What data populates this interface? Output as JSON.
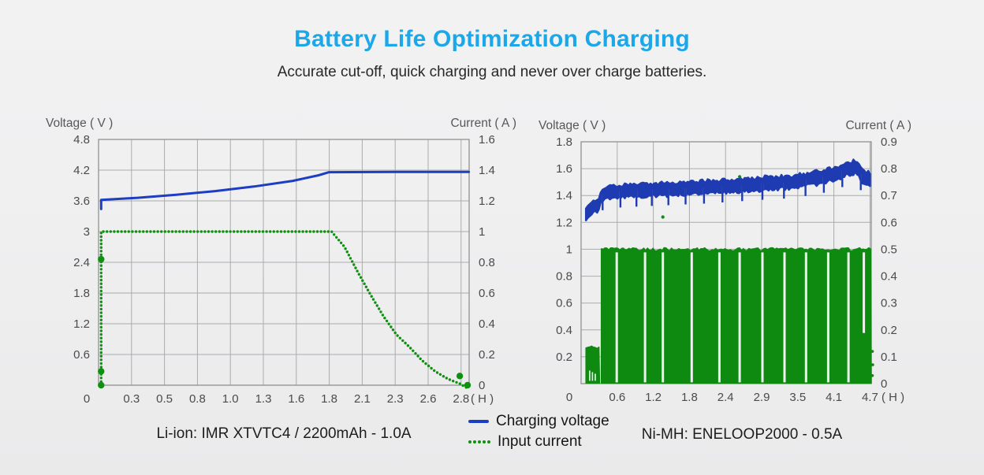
{
  "page": {
    "title": "Battery Life Optimization Charging",
    "subtitle": "Accurate cut-off, quick charging and never over charge batteries.",
    "title_color": "#1ba7e8",
    "background": "#efeff0"
  },
  "legend": {
    "items": [
      {
        "label": "Charging voltage",
        "style": "line",
        "color": "#1d3ec2"
      },
      {
        "label": "Input current",
        "style": "dotted",
        "color": "#0f9110"
      }
    ]
  },
  "chart_data": [
    {
      "id": "liion",
      "type": "line",
      "caption": "Li-ion: IMR XTVTC4 / 2200mAh - 1.0A",
      "left_axis": {
        "label": "Voltage ( V )",
        "min": 0,
        "max": 4.8,
        "ticks": [
          "4.8",
          "4.2",
          "3.6",
          "3",
          "2.4",
          "1.8",
          "1.2",
          "0.6"
        ]
      },
      "right_axis": {
        "label": "Current ( A )",
        "min": 0,
        "max": 1.6,
        "ticks": [
          "1.6",
          "1.4",
          "1.2",
          "1",
          "0.8",
          "0.6",
          "0.4",
          "0.2",
          "0"
        ]
      },
      "x_axis": {
        "unit": "( H )",
        "min": 0,
        "max": 2.86,
        "ticks": [
          "0",
          "0.3",
          "0.5",
          "0.8",
          "1.0",
          "1.3",
          "1.6",
          "1.8",
          "2.1",
          "2.3",
          "2.6",
          "2.8"
        ]
      },
      "grid": true,
      "series": [
        {
          "name": "Charging voltage",
          "axis": "left",
          "style": "line",
          "color": "#1d3ec2",
          "points": [
            [
              0.02,
              3.44
            ],
            [
              0.02,
              3.62
            ],
            [
              0.3,
              3.66
            ],
            [
              0.6,
              3.72
            ],
            [
              0.9,
              3.79
            ],
            [
              1.2,
              3.88
            ],
            [
              1.5,
              3.99
            ],
            [
              1.7,
              4.1
            ],
            [
              1.78,
              4.16
            ],
            [
              2.3,
              4.165
            ],
            [
              2.86,
              4.165
            ]
          ]
        },
        {
          "name": "Input current",
          "axis": "right",
          "style": "dotted",
          "color": "#0f9110",
          "points": [
            [
              0.02,
              0.0
            ],
            [
              0.02,
              1.0
            ],
            [
              1.8,
              1.0
            ],
            [
              1.9,
              0.9
            ],
            [
              2.0,
              0.74
            ],
            [
              2.1,
              0.59
            ],
            [
              2.2,
              0.45
            ],
            [
              2.3,
              0.33
            ],
            [
              2.4,
              0.25
            ],
            [
              2.5,
              0.16
            ],
            [
              2.6,
              0.09
            ],
            [
              2.7,
              0.04
            ],
            [
              2.79,
              0.01
            ],
            [
              2.85,
              -0.02
            ]
          ],
          "big_dots": [
            [
              0.02,
              0.0
            ],
            [
              0.02,
              0.09
            ],
            [
              0.02,
              0.82
            ],
            [
              2.79,
              0.06
            ],
            [
              2.85,
              0.0
            ]
          ]
        }
      ]
    },
    {
      "id": "nimh",
      "type": "area",
      "caption": "Ni-MH: ENELOOP2000 - 0.5A",
      "left_axis": {
        "label": "Voltage ( V )",
        "min": 0,
        "max": 1.8,
        "ticks": [
          "1.8",
          "1.6",
          "1.4",
          "1.2",
          "1",
          "0.8",
          "0.6",
          "0.4",
          "0.2"
        ]
      },
      "right_axis": {
        "label": "Current ( A )",
        "min": 0,
        "max": 0.9,
        "ticks": [
          "0.9",
          "0.8",
          "0.7",
          "0.6",
          "0.5",
          "0.4",
          "0.3",
          "0.2",
          "0.1",
          "0"
        ]
      },
      "x_axis": {
        "unit": "( H )",
        "min": 0,
        "max": 4.75,
        "ticks": [
          "0",
          "0.6",
          "1.2",
          "1.8",
          "2.4",
          "2.9",
          "3.5",
          "4.1",
          "4.7"
        ]
      },
      "grid": true,
      "blue_dips": [
        0.35,
        0.64,
        0.9,
        1.15,
        1.42,
        1.7,
        2.0,
        2.3,
        2.62,
        2.95,
        3.3,
        3.65,
        3.95,
        4.25,
        4.55
      ],
      "green_gaps": [
        0.58,
        1.04,
        1.33,
        1.8,
        2.25,
        2.58,
        2.95,
        3.31,
        3.66,
        4.02,
        4.35,
        {
          "x": 4.6,
          "frac": 0.62
        }
      ],
      "series": [
        {
          "name": "Charging voltage",
          "axis": "left",
          "style": "noisy_band",
          "color": "#1e3bb2",
          "half_thickness": 0.045,
          "dip_depth": 0.12,
          "midline": [
            [
              0.08,
              1.25
            ],
            [
              0.12,
              1.28
            ],
            [
              0.2,
              1.31
            ],
            [
              0.28,
              1.33
            ],
            [
              0.34,
              1.41
            ],
            [
              0.6,
              1.43
            ],
            [
              1.0,
              1.44
            ],
            [
              1.5,
              1.45
            ],
            [
              2.0,
              1.46
            ],
            [
              2.5,
              1.475
            ],
            [
              3.0,
              1.49
            ],
            [
              3.4,
              1.5
            ],
            [
              3.7,
              1.52
            ],
            [
              4.0,
              1.545
            ],
            [
              4.2,
              1.575
            ],
            [
              4.35,
              1.6
            ],
            [
              4.47,
              1.615
            ],
            [
              4.55,
              1.56
            ],
            [
              4.62,
              1.53
            ],
            [
              4.72,
              1.52
            ]
          ]
        },
        {
          "name": "Input current",
          "axis": "right",
          "style": "pulse_fill",
          "color": "#0e8a10",
          "level": 0.5,
          "start": 0.33,
          "end": 4.72,
          "intro": {
            "start": 0.08,
            "end": 0.3,
            "level": 0.135
          },
          "gap_dots": [
            [
              1.33,
              0.62
            ],
            [
              2.58,
              0.77
            ]
          ],
          "end_dots": [
            [
              4.74,
              0.12
            ],
            [
              4.745,
              0.07
            ],
            [
              4.74,
              0.03
            ]
          ]
        }
      ]
    }
  ]
}
